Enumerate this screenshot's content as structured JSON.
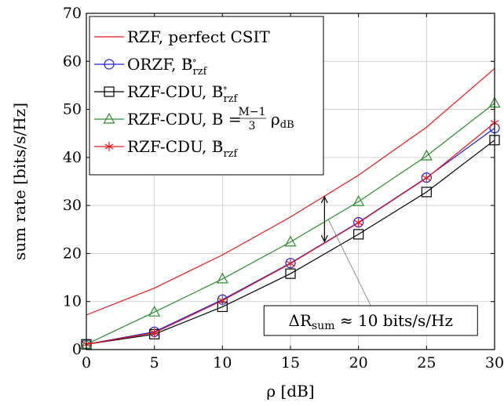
{
  "chart_data": {
    "type": "line",
    "xlabel": "ρ [dB]",
    "ylabel": "sum rate [bits/s/Hz]",
    "xlim": [
      0,
      30
    ],
    "ylim": [
      0,
      70
    ],
    "xticks": [
      0,
      5,
      10,
      15,
      20,
      25,
      30
    ],
    "yticks": [
      0,
      10,
      20,
      30,
      40,
      50,
      60,
      70
    ],
    "grid": true,
    "legend_position": "top-left",
    "series": [
      {
        "name": "RZF, perfect CSIT",
        "legend_main": "RZF, perfect CSIT",
        "legend_sub": "",
        "legend_sup": "",
        "color": "#e8191b",
        "marker": "none",
        "x": [
          0,
          5,
          10,
          15,
          20,
          25,
          30
        ],
        "y": [
          7.2,
          12.8,
          19.7,
          27.6,
          36.3,
          46.3,
          58.5
        ]
      },
      {
        "name": "ORZF, B_rzf^⋆∘",
        "legend_main": "ORZF, B",
        "legend_sub": "rzf",
        "legend_sup": "⋆∘",
        "color": "#1f1fd6",
        "marker": "circle",
        "x": [
          0,
          5,
          10,
          15,
          20,
          25,
          30
        ],
        "y": [
          1.1,
          3.7,
          10.4,
          18.0,
          26.5,
          35.8,
          46.1
        ]
      },
      {
        "name": "RZF-CDU, B_rzf^⋆∘",
        "legend_main": "RZF-CDU, B",
        "legend_sub": "rzf",
        "legend_sup": "⋆∘",
        "color": "#000000",
        "marker": "square",
        "x": [
          0,
          5,
          10,
          15,
          20,
          25,
          30
        ],
        "y": [
          1.1,
          3.2,
          8.9,
          15.8,
          24.0,
          32.8,
          43.6
        ]
      },
      {
        "name": "RZF-CDU, B = (M−1)/3 ρ_dB",
        "legend_main": "RZF-CDU, B =",
        "legend_sub": "dB",
        "legend_sup": "",
        "legend_frac_num": "M−1",
        "legend_frac_den": "3",
        "legend_frac_tail": "ρ",
        "color": "#2e8b2e",
        "marker": "triangle",
        "x": [
          0,
          5,
          10,
          15,
          20,
          25,
          30
        ],
        "y": [
          1.1,
          7.8,
          14.7,
          22.4,
          30.8,
          40.3,
          51.3
        ]
      },
      {
        "name": "RZF-CDU, B_rzf^∘",
        "legend_main": "RZF-CDU, B",
        "legend_sub": "rzf",
        "legend_sup": "∘",
        "color": "#e8191b",
        "marker": "asterisk",
        "x": [
          0,
          5,
          10,
          15,
          20,
          25,
          30
        ],
        "y": [
          1.1,
          3.5,
          10.2,
          17.9,
          26.4,
          35.7,
          47.2
        ]
      }
    ],
    "annotations": [
      {
        "type": "double-arrow",
        "x": 17.5,
        "y_from": 22.5,
        "y_to": 31.8
      },
      {
        "type": "callout",
        "text_main": "ΔR",
        "text_sub": "sum",
        "text_tail": " ≈ 10 bits/s/Hz",
        "pointer_x": 17.8,
        "pointer_y": 27.0,
        "anchor_x": 20.9,
        "anchor_y": 6.2
      }
    ]
  }
}
